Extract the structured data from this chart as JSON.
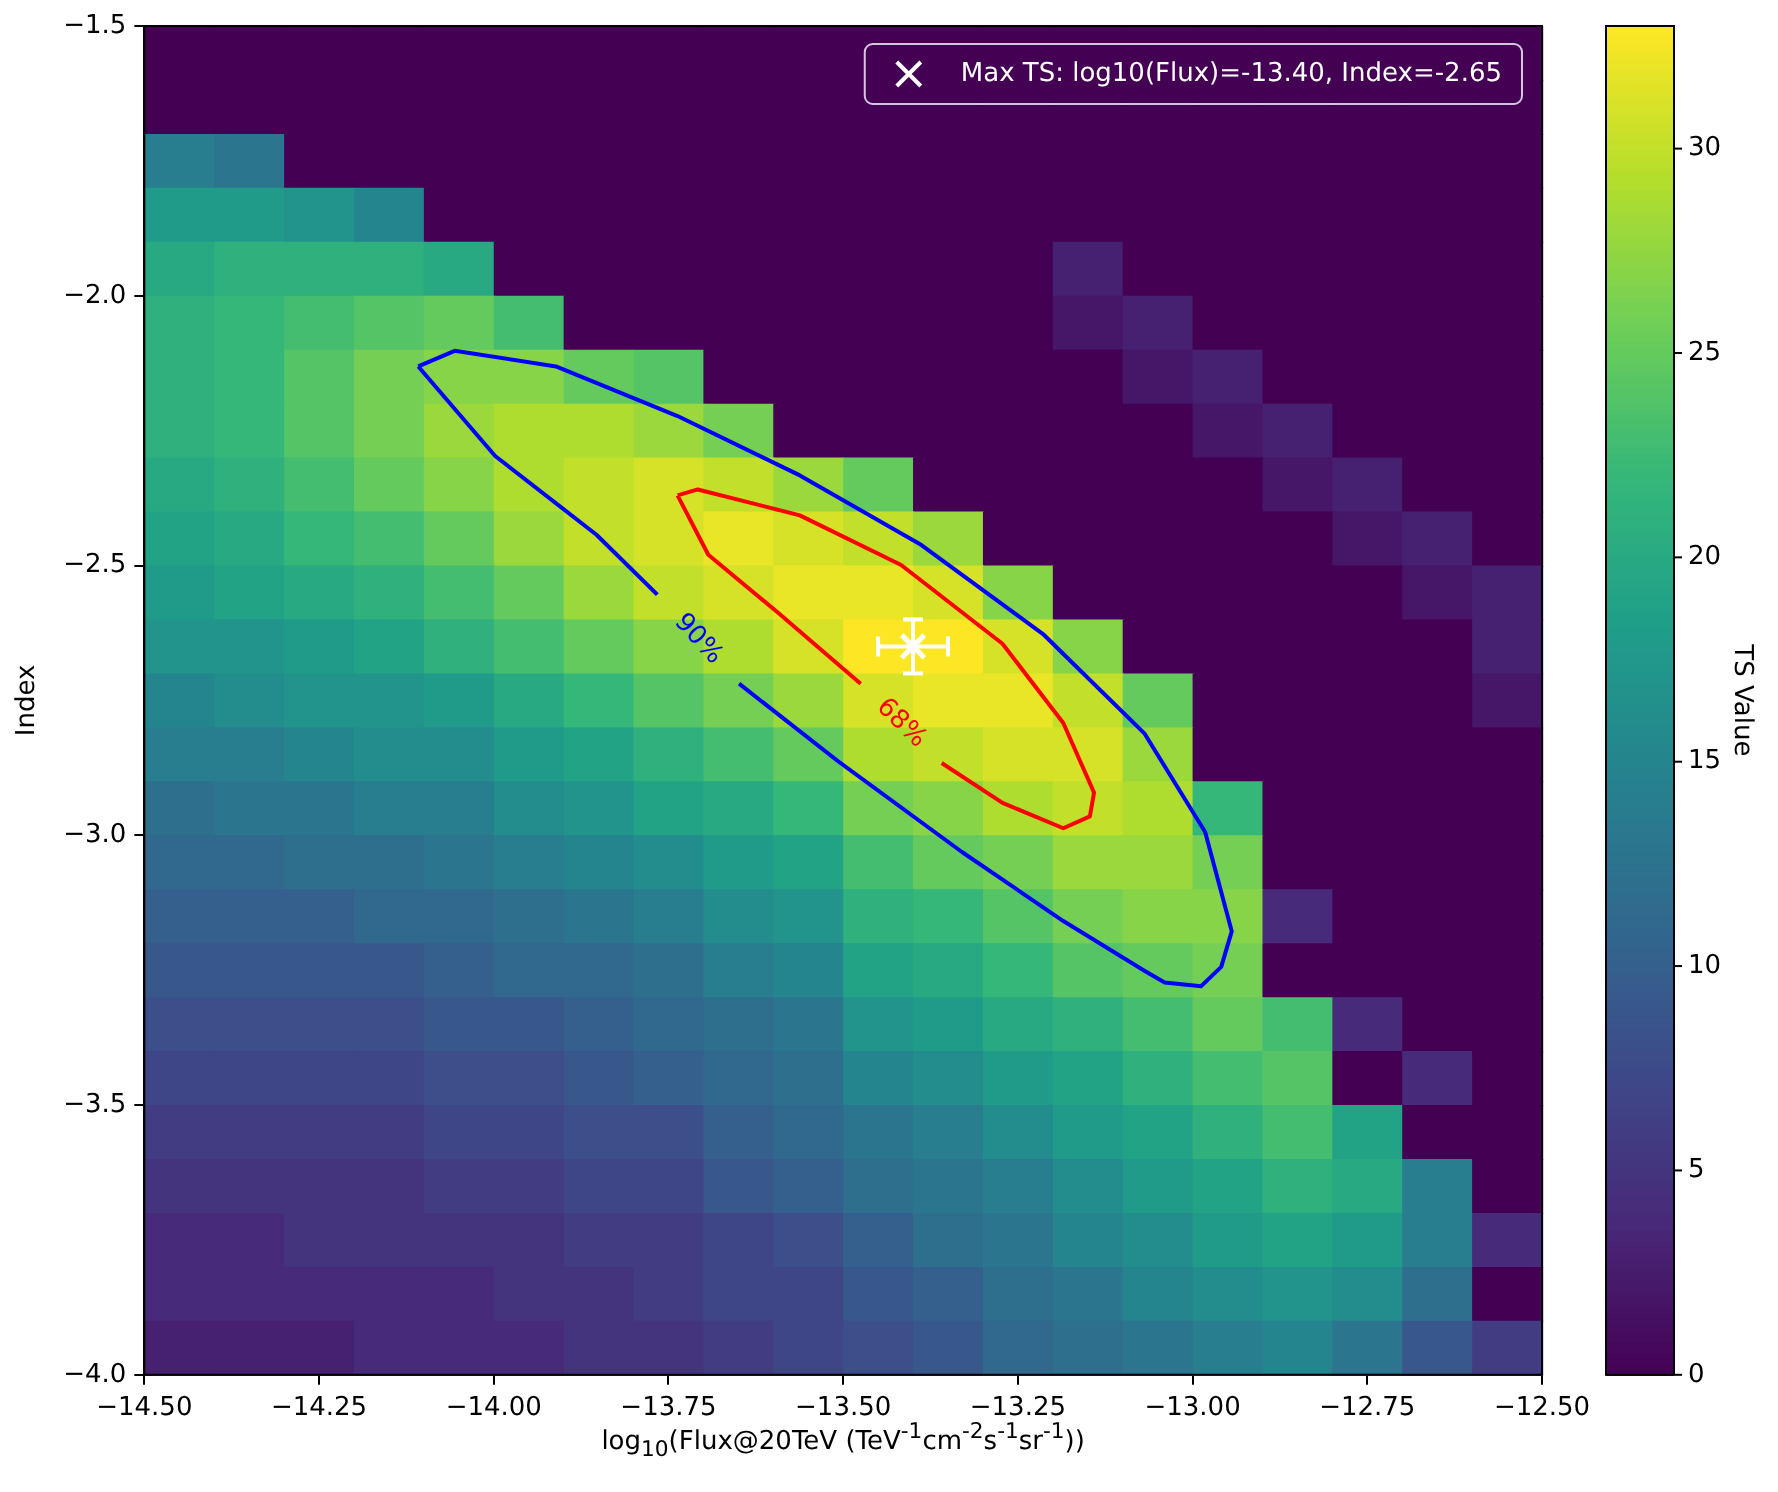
{
  "chart_data": {
    "type": "heatmap",
    "xlabel": "log$_{10}$(Flux@20TeV (TeV$^{-1}$cm$^{-2}$s$^{-1}$sr$^{-1}$))",
    "ylabel": "Index",
    "clabel": "TS Value",
    "xlim": [
      -14.5,
      -12.5
    ],
    "xticks": [
      {
        "value": -14.5,
        "label": "−14.50"
      },
      {
        "value": -14.25,
        "label": "−14.25"
      },
      {
        "value": -14.0,
        "label": "−14.00"
      },
      {
        "value": -13.75,
        "label": "−13.75"
      },
      {
        "value": -13.5,
        "label": "−13.50"
      },
      {
        "value": -13.25,
        "label": "−13.25"
      },
      {
        "value": -13.0,
        "label": "−13.00"
      },
      {
        "value": -12.75,
        "label": "−12.75"
      },
      {
        "value": -12.5,
        "label": "−12.50"
      }
    ],
    "ylim": [
      -4.0,
      -1.5
    ],
    "yticks": [
      {
        "value": -4.0,
        "label": "−4.0"
      },
      {
        "value": -3.5,
        "label": "−3.5"
      },
      {
        "value": -3.0,
        "label": "−3.0"
      },
      {
        "value": -2.5,
        "label": "−2.5"
      },
      {
        "value": -2.0,
        "label": "−2.0"
      },
      {
        "value": -1.5,
        "label": "−1.5"
      }
    ],
    "clim": [
      0,
      33
    ],
    "cticks": [
      0,
      5,
      10,
      15,
      20,
      25,
      30
    ],
    "legend": "top right",
    "cells": [
      [
        0,
        0,
        0,
        0,
        0,
        0,
        0,
        0,
        0,
        0,
        0,
        0,
        0,
        0,
        0,
        0,
        0,
        0,
        0,
        0
      ],
      [
        0,
        0,
        0,
        0,
        0,
        0,
        0,
        0,
        0,
        0,
        0,
        0,
        0,
        0,
        0,
        0,
        0,
        0,
        0,
        0
      ],
      [
        14,
        13,
        0,
        0,
        0,
        0,
        0,
        0,
        0,
        0,
        0,
        0,
        0,
        0,
        0,
        0,
        0,
        0,
        0,
        0
      ],
      [
        18,
        18,
        17,
        15,
        0,
        0,
        0,
        0,
        0,
        0,
        0,
        0,
        0,
        0,
        0,
        0,
        0,
        0,
        0,
        0
      ],
      [
        20,
        21,
        21,
        21,
        20,
        0,
        0,
        0,
        0,
        0,
        0,
        0,
        0,
        3,
        0,
        0,
        0,
        0,
        0,
        0
      ],
      [
        21,
        22,
        23,
        24,
        25,
        23,
        0,
        0,
        0,
        0,
        0,
        0,
        0,
        2,
        3,
        0,
        0,
        0,
        0,
        0
      ],
      [
        21,
        22,
        24,
        26,
        27,
        27,
        25,
        24,
        0,
        0,
        0,
        0,
        0,
        0,
        2,
        3,
        0,
        0,
        0,
        0
      ],
      [
        21,
        22,
        24,
        26,
        28,
        29,
        29,
        28,
        26,
        0,
        0,
        0,
        0,
        0,
        0,
        2,
        3,
        0,
        0,
        0
      ],
      [
        20,
        21,
        23,
        25,
        27,
        29,
        30,
        31,
        30,
        28,
        25,
        0,
        0,
        0,
        0,
        0,
        2,
        3,
        0,
        0
      ],
      [
        19,
        20,
        22,
        23,
        25,
        28,
        30,
        31,
        32,
        31,
        30,
        28,
        0,
        0,
        0,
        0,
        0,
        2,
        3,
        0
      ],
      [
        18,
        19,
        20,
        21,
        23,
        25,
        28,
        30,
        31,
        32,
        32,
        31,
        27,
        0,
        0,
        0,
        0,
        0,
        2,
        3
      ],
      [
        17,
        17,
        18,
        19,
        21,
        23,
        25,
        27,
        29,
        31,
        33,
        33,
        31,
        27,
        0,
        0,
        0,
        0,
        0,
        3
      ],
      [
        15,
        16,
        17,
        17,
        18,
        20,
        22,
        24,
        26,
        28,
        31,
        32,
        32,
        30,
        25,
        0,
        0,
        0,
        0,
        2
      ],
      [
        14,
        14,
        15,
        16,
        16,
        18,
        19,
        21,
        23,
        25,
        29,
        30,
        31,
        31,
        28,
        0,
        0,
        0,
        0,
        0
      ],
      [
        12,
        13,
        13,
        14,
        14,
        16,
        17,
        19,
        20,
        22,
        26,
        27,
        29,
        30,
        29,
        22,
        0,
        0,
        0,
        0
      ],
      [
        11,
        11,
        12,
        12,
        13,
        14,
        15,
        16,
        18,
        19,
        23,
        25,
        26,
        28,
        28,
        26,
        0,
        0,
        0,
        0
      ],
      [
        10,
        10,
        10,
        11,
        11,
        12,
        13,
        14,
        16,
        17,
        21,
        22,
        24,
        26,
        27,
        27,
        4,
        0,
        0,
        0
      ],
      [
        9,
        9,
        9,
        9,
        10,
        11,
        11,
        12,
        14,
        15,
        19,
        20,
        22,
        24,
        25,
        26,
        0,
        0,
        0,
        0
      ],
      [
        8,
        8,
        8,
        8,
        9,
        9,
        10,
        11,
        12,
        13,
        17,
        18,
        20,
        21,
        23,
        25,
        23,
        4,
        0,
        0
      ],
      [
        7,
        7,
        7,
        7,
        8,
        8,
        9,
        10,
        11,
        12,
        15,
        16,
        18,
        19,
        21,
        23,
        24,
        0,
        4,
        0
      ],
      [
        6,
        6,
        6,
        6,
        7,
        7,
        8,
        8,
        10,
        11,
        13,
        14,
        16,
        18,
        19,
        21,
        23,
        19,
        0,
        0
      ],
      [
        5,
        5,
        5,
        5,
        6,
        6,
        7,
        7,
        9,
        10,
        12,
        13,
        14,
        16,
        18,
        19,
        21,
        20,
        14,
        0
      ],
      [
        4,
        4,
        5,
        5,
        5,
        5,
        6,
        6,
        7,
        8,
        10,
        12,
        13,
        15,
        16,
        18,
        19,
        18,
        14,
        4
      ],
      [
        4,
        4,
        4,
        4,
        4,
        5,
        5,
        6,
        7,
        7,
        9,
        10,
        12,
        13,
        15,
        16,
        17,
        16,
        12,
        0
      ],
      [
        3,
        3,
        3,
        4,
        4,
        4,
        5,
        5,
        6,
        7,
        8,
        9,
        11,
        12,
        13,
        14,
        15,
        13,
        9,
        6
      ]
    ],
    "series": [
      {
        "type": "line",
        "name": "90%",
        "color": "#0000ff",
        "x": [
          -14.108,
          -14.056,
          -13.911,
          -13.737,
          -13.562,
          -13.388,
          -13.214,
          -13.069,
          -12.982,
          -12.944,
          -12.959,
          -12.988,
          -13.04,
          -13.069,
          -13.185,
          -13.33,
          -13.504,
          -13.649,
          -13.72,
          -13.766,
          -13.853,
          -13.998,
          -14.108
        ],
        "values": [
          -2.131,
          -2.102,
          -2.131,
          -2.223,
          -2.333,
          -2.462,
          -2.627,
          -2.811,
          -2.994,
          -3.178,
          -3.244,
          -3.28,
          -3.273,
          -3.251,
          -3.159,
          -3.031,
          -2.866,
          -2.719,
          null,
          -2.554,
          -2.443,
          -2.297,
          -2.131
        ]
      },
      {
        "type": "line",
        "name": "68%",
        "color": "#ff0000",
        "x": [
          -13.737,
          -13.708,
          -13.562,
          -13.417,
          -13.272,
          -13.185,
          -13.141,
          -13.147,
          -13.185,
          -13.272,
          -13.359,
          -13.417,
          -13.475,
          -13.591,
          -13.693,
          -13.737
        ],
        "values": [
          -2.37,
          -2.359,
          -2.407,
          -2.499,
          -2.645,
          -2.792,
          -2.921,
          -2.965,
          -2.987,
          -2.94,
          -2.866,
          null,
          -2.719,
          -2.59,
          -2.48,
          -2.37
        ]
      },
      {
        "type": "scatter",
        "name": "Max TS: log10(Flux)=-13.40, Index=-2.65",
        "color": "#ffffff",
        "marker": "cross",
        "x": [
          -13.4
        ],
        "values": [
          -2.65
        ],
        "errors": [
          0.05
        ],
        "xerrors": [
          0.05
        ]
      }
    ]
  }
}
